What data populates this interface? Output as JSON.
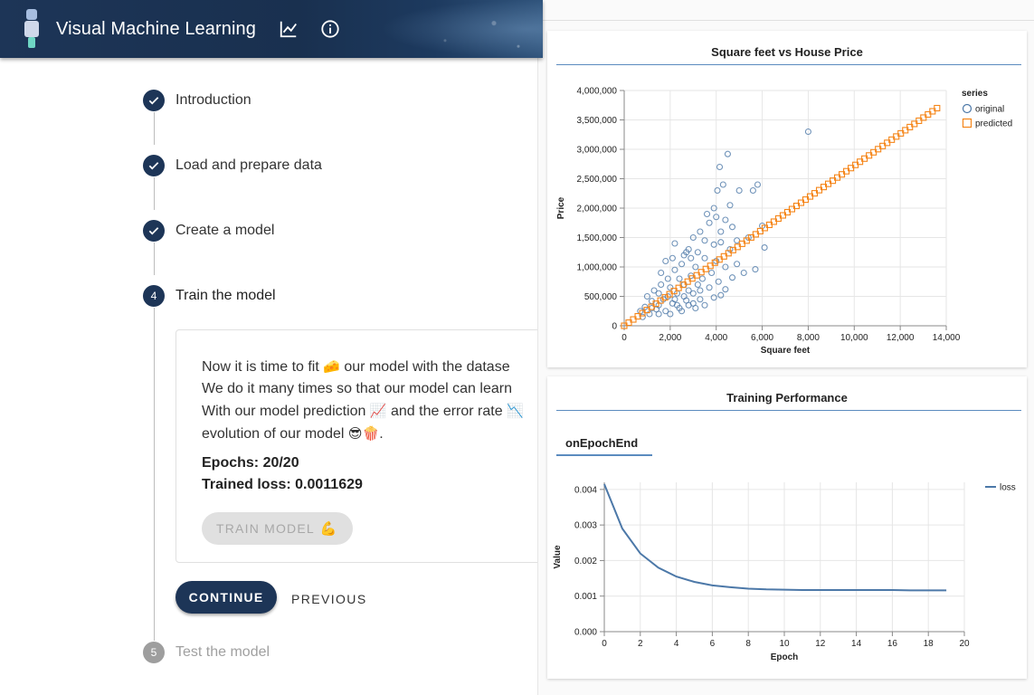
{
  "app": {
    "title": "Visual Machine Learning",
    "icons": [
      "robot-logo-icon",
      "show-chart-icon",
      "info-icon"
    ]
  },
  "steps": [
    {
      "label": "Introduction",
      "state": "done"
    },
    {
      "label": "Load and prepare data",
      "state": "done"
    },
    {
      "label": "Create a model",
      "state": "done"
    },
    {
      "label": "Train the model",
      "state": "active",
      "number": "4"
    },
    {
      "label": "Test the model",
      "state": "disabled",
      "number": "5"
    }
  ],
  "train_card": {
    "line1_a": "Now it is time to fit ",
    "line1_emoji": "🧀",
    "line1_b": " our model with the datase",
    "line2": "We do it many times so that our model can learn",
    "line3_a": "With our model prediction ",
    "line3_emoji": "📈",
    "line3_b": " and the error rate ",
    "line3_emoji2": "📉",
    "line4_a": "evolution of our model ",
    "line4_emoji": "😎🍿",
    "line4_b": ".",
    "epochs": "Epochs: 20/20",
    "loss": "Trained loss: 0.0011629",
    "train_button": "TRAIN MODEL",
    "train_button_emoji": "💪"
  },
  "actions": {
    "continue": "CONTINUE",
    "previous": "PREVIOUS"
  },
  "colors": {
    "primary": "#1d3557",
    "original": "#4c78a8",
    "predicted": "#f58518"
  },
  "chart_data": [
    {
      "type": "scatter",
      "title": "Square feet vs House Price",
      "xlabel": "Square feet",
      "ylabel": "Price",
      "xlim": [
        0,
        14000
      ],
      "ylim": [
        0,
        4000000
      ],
      "xticks": [
        "0",
        "2,000",
        "4,000",
        "6,000",
        "8,000",
        "10,000",
        "12,000",
        "14,000"
      ],
      "yticks": [
        "0",
        "500,000",
        "1,000,000",
        "1,500,000",
        "2,000,000",
        "2,500,000",
        "3,000,000",
        "3,500,000",
        "4,000,000"
      ],
      "legend_title": "series",
      "legend_position": "top-right",
      "series": [
        {
          "name": "original",
          "marker": "circle",
          "points": [
            [
              8000,
              3300000
            ],
            [
              4500,
              2920000
            ],
            [
              4150,
              2700000
            ],
            [
              4300,
              2400000
            ],
            [
              4050,
              2300000
            ],
            [
              4600,
              2050000
            ],
            [
              5000,
              2300000
            ],
            [
              5600,
              2300000
            ],
            [
              5800,
              2400000
            ],
            [
              6000,
              1700000
            ],
            [
              6100,
              1330000
            ],
            [
              5700,
              960000
            ],
            [
              5400,
              1500000
            ],
            [
              4900,
              1450000
            ],
            [
              3900,
              2000000
            ],
            [
              3600,
              1900000
            ],
            [
              4000,
              1850000
            ],
            [
              3700,
              1750000
            ],
            [
              4400,
              1800000
            ],
            [
              4700,
              1680000
            ],
            [
              4200,
              1600000
            ],
            [
              3300,
              1600000
            ],
            [
              3500,
              1450000
            ],
            [
              3900,
              1380000
            ],
            [
              4200,
              1420000
            ],
            [
              4600,
              1300000
            ],
            [
              4900,
              1050000
            ],
            [
              5200,
              900000
            ],
            [
              3000,
              1500000
            ],
            [
              2800,
              1300000
            ],
            [
              2200,
              1400000
            ],
            [
              2600,
              1200000
            ],
            [
              3200,
              1250000
            ],
            [
              3500,
              1150000
            ],
            [
              4000,
              1100000
            ],
            [
              4400,
              1000000
            ],
            [
              4700,
              820000
            ],
            [
              4400,
              620000
            ],
            [
              4200,
              520000
            ],
            [
              3900,
              480000
            ],
            [
              3700,
              650000
            ],
            [
              3300,
              450000
            ],
            [
              3000,
              380000
            ],
            [
              2700,
              430000
            ],
            [
              2400,
              300000
            ],
            [
              2100,
              380000
            ],
            [
              1800,
              250000
            ],
            [
              1500,
              350000
            ],
            [
              1200,
              420000
            ],
            [
              900,
              320000
            ],
            [
              700,
              250000
            ],
            [
              1000,
              500000
            ],
            [
              1300,
              600000
            ],
            [
              1600,
              700000
            ],
            [
              1900,
              800000
            ],
            [
              2200,
              950000
            ],
            [
              2500,
              1050000
            ],
            [
              2000,
              650000
            ],
            [
              2300,
              550000
            ],
            [
              2600,
              700000
            ],
            [
              2900,
              850000
            ],
            [
              3100,
              1000000
            ],
            [
              2800,
              600000
            ],
            [
              1700,
              450000
            ],
            [
              1400,
              280000
            ],
            [
              1100,
              200000
            ],
            [
              2000,
              200000
            ],
            [
              2500,
              250000
            ],
            [
              3100,
              300000
            ],
            [
              3500,
              350000
            ],
            [
              1600,
              900000
            ],
            [
              1800,
              1100000
            ],
            [
              2100,
              1150000
            ],
            [
              2400,
              800000
            ],
            [
              3400,
              800000
            ],
            [
              3800,
              900000
            ],
            [
              4100,
              750000
            ],
            [
              2900,
              1150000
            ],
            [
              3200,
              700000
            ],
            [
              2700,
              1250000
            ],
            [
              1500,
              550000
            ],
            [
              1900,
              500000
            ],
            [
              2200,
              450000
            ],
            [
              2600,
              500000
            ],
            [
              3000,
              550000
            ],
            [
              3300,
              600000
            ],
            [
              800,
              150000
            ],
            [
              1200,
              300000
            ],
            [
              1500,
              200000
            ],
            [
              2300,
              350000
            ],
            [
              2800,
              350000
            ]
          ]
        },
        {
          "name": "predicted",
          "marker": "square",
          "line_from": [
            0,
            0
          ],
          "line_to": [
            13600,
            3700000
          ],
          "count": 70
        }
      ]
    },
    {
      "type": "line",
      "title": "Training Performance",
      "subtitle": "onEpochEnd",
      "xlabel": "Epoch",
      "ylabel": "Value",
      "xlim": [
        0,
        20
      ],
      "ylim": [
        0,
        0.0042
      ],
      "xticks": [
        "0",
        "2",
        "4",
        "6",
        "8",
        "10",
        "12",
        "14",
        "16",
        "18",
        "20"
      ],
      "yticks": [
        "0.000",
        "0.001",
        "0.002",
        "0.003",
        "0.004"
      ],
      "legend_position": "top-right",
      "series": [
        {
          "name": "loss",
          "x": [
            0,
            1,
            2,
            3,
            4,
            5,
            6,
            7,
            8,
            9,
            10,
            11,
            12,
            13,
            14,
            15,
            16,
            17,
            18,
            19
          ],
          "values": [
            0.00415,
            0.0029,
            0.0022,
            0.0018,
            0.00155,
            0.0014,
            0.0013,
            0.00125,
            0.00121,
            0.00119,
            0.00118,
            0.00117,
            0.00117,
            0.00117,
            0.00117,
            0.00117,
            0.00117,
            0.00116,
            0.00116,
            0.00116
          ]
        }
      ]
    }
  ]
}
